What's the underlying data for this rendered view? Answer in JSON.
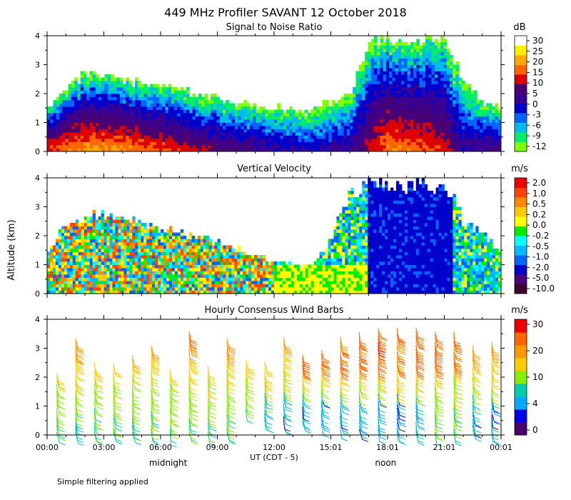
{
  "title": "449 MHz Profiler SAVANT 12 October 2018",
  "y_axis_label": "Altitude (km)",
  "x_axis": {
    "label": "UT  (CDT - 5)",
    "ticks": [
      "00:00",
      "03:00",
      "06:00",
      "09:00",
      "12:00",
      "15:01",
      "18:01",
      "21:01",
      "00:01"
    ],
    "tick_hours": [
      0,
      3,
      6,
      9,
      12,
      15,
      18,
      21,
      24
    ],
    "secondary_labels": [
      {
        "text": "midnight",
        "hour": 6.4
      },
      {
        "text": "noon",
        "hour": 17.9
      }
    ]
  },
  "footnote": "Simple filtering applied",
  "colors": {
    "background": "#ffffff",
    "snr_scale": [
      "#7fff00",
      "#00ee66",
      "#00bbee",
      "#0066ff",
      "#0000cc",
      "#3a0090",
      "#4b0070",
      "#dd0000",
      "#ff6600",
      "#ffaa00",
      "#ffee00",
      "#ffffff"
    ],
    "vel_scale": [
      "#3d0030",
      "#4a0080",
      "#0000cc",
      "#0066ff",
      "#00bbff",
      "#00ffff",
      "#00ee00",
      "#ffff00",
      "#ffcc00",
      "#ff8800",
      "#ff4400",
      "#ee0000"
    ],
    "wind_scale": [
      "#4b0070",
      "#0000ee",
      "#00aaff",
      "#00ccaa",
      "#88ee00",
      "#ffcc00",
      "#ff9900",
      "#ff6600",
      "#ee0000"
    ]
  },
  "chart_data": [
    {
      "type": "heatmap",
      "title": "Signal to Noise Ratio",
      "xlabel": "UT  (CDT - 5)",
      "ylabel": "Altitude (km)",
      "xlim": [
        0,
        24
      ],
      "ylim": [
        0,
        4
      ],
      "yticks": [
        "0",
        "1",
        "2",
        "3",
        "4"
      ],
      "colorbar_unit": "dB",
      "colorbar_labels": [
        "30",
        "25",
        "20",
        "15",
        "10",
        "5",
        "0",
        "-3",
        "-6",
        "-9",
        "-12"
      ],
      "colorbar_values": [
        -12,
        -9,
        -6,
        -3,
        0,
        5,
        10,
        15,
        20,
        25,
        30
      ],
      "echo_top_km": [
        [
          0.0,
          1.5
        ],
        [
          1.0,
          2.2
        ],
        [
          2.0,
          2.7
        ],
        [
          3.0,
          2.7
        ],
        [
          4.0,
          2.5
        ],
        [
          5.0,
          2.4
        ],
        [
          6.0,
          2.3
        ],
        [
          7.0,
          2.2
        ],
        [
          8.0,
          2.0
        ],
        [
          9.0,
          1.9
        ],
        [
          10.0,
          1.7
        ],
        [
          11.0,
          1.6
        ],
        [
          12.0,
          1.6
        ],
        [
          13.0,
          1.5
        ],
        [
          14.0,
          1.5
        ],
        [
          15.0,
          1.8
        ],
        [
          16.0,
          2.0
        ],
        [
          17.0,
          3.8
        ],
        [
          19.0,
          3.9
        ],
        [
          21.0,
          3.9
        ],
        [
          22.0,
          2.5
        ],
        [
          23.0,
          1.8
        ],
        [
          24.0,
          1.5
        ]
      ],
      "peak_snr_db": [
        [
          0.0,
          22
        ],
        [
          2.0,
          27
        ],
        [
          4.0,
          26
        ],
        [
          6.0,
          22
        ],
        [
          8.0,
          16
        ],
        [
          10.0,
          12
        ],
        [
          12.0,
          8
        ],
        [
          14.0,
          5
        ],
        [
          16.0,
          8
        ],
        [
          18.0,
          25
        ],
        [
          20.0,
          22
        ],
        [
          21.0,
          18
        ],
        [
          22.0,
          8
        ],
        [
          24.0,
          12
        ]
      ]
    },
    {
      "type": "heatmap",
      "title": "Vertical Velocity",
      "xlabel": "UT  (CDT - 5)",
      "ylabel": "Altitude (km)",
      "xlim": [
        0,
        24
      ],
      "ylim": [
        0,
        4
      ],
      "yticks": [
        "0",
        "1",
        "2",
        "3",
        "4"
      ],
      "colorbar_unit": "m/s",
      "colorbar_labels": [
        "2.0",
        "1.0",
        "0.5",
        "0.2",
        "0.0",
        "-0.2",
        "-0.5",
        "-1.0",
        "-2.0",
        "-5.0",
        "-10.0"
      ],
      "colorbar_values": [
        -10.0,
        -5.0,
        -2.0,
        -1.0,
        -0.5,
        -0.2,
        0.0,
        0.2,
        0.5,
        1.0,
        2.0
      ],
      "data_top_km": [
        [
          0.0,
          1.4
        ],
        [
          1.0,
          2.4
        ],
        [
          2.0,
          2.8
        ],
        [
          3.0,
          2.8
        ],
        [
          4.0,
          2.6
        ],
        [
          5.0,
          2.5
        ],
        [
          6.0,
          2.3
        ],
        [
          7.0,
          2.2
        ],
        [
          8.0,
          2.0
        ],
        [
          9.0,
          1.8
        ],
        [
          10.0,
          1.6
        ],
        [
          11.0,
          1.4
        ],
        [
          12.0,
          1.2
        ],
        [
          13.0,
          1.0
        ],
        [
          14.0,
          1.0
        ],
        [
          15.0,
          2.0
        ],
        [
          16.0,
          3.5
        ],
        [
          17.0,
          3.8
        ],
        [
          20.0,
          3.8
        ],
        [
          21.5,
          3.5
        ],
        [
          22.0,
          2.5
        ],
        [
          23.0,
          2.2
        ],
        [
          24.0,
          1.5
        ]
      ],
      "downdraft_region": {
        "start_hour": 17.0,
        "end_hour": 21.5,
        "velocity_ms": -2.0
      }
    },
    {
      "type": "wind_barbs",
      "title": "Hourly Consensus Wind Barbs",
      "xlabel": "UT  (CDT - 5)",
      "ylabel": "Altitude (km)",
      "xlim": [
        0,
        24
      ],
      "ylim": [
        0,
        4
      ],
      "yticks": [
        "0",
        "1",
        "2",
        "3",
        "4"
      ],
      "colorbar_unit": "m/s",
      "colorbar_labels": [
        "30",
        "20",
        "10",
        "4",
        "0"
      ],
      "colorbar_values": [
        0,
        4,
        10,
        20,
        30
      ],
      "hours": [
        0,
        1,
        2,
        3,
        4,
        5,
        6,
        7,
        8,
        9,
        10,
        11,
        12,
        13,
        14,
        15,
        16,
        17,
        18,
        19,
        20,
        21,
        22,
        23
      ],
      "profile_top_km": [
        2.2,
        3.4,
        2.6,
        2.6,
        2.8,
        3.2,
        2.3,
        3.7,
        2.4,
        3.4,
        2.6,
        2.6,
        3.5,
        2.8,
        3.0,
        3.5,
        3.6,
        3.7,
        3.8,
        3.8,
        3.7,
        3.7,
        3.2,
        3.3
      ],
      "profile_bottom_km": [
        0.1,
        0.1,
        0.1,
        0.1,
        0.1,
        0.1,
        0.1,
        0.1,
        0.1,
        0.1,
        0.9,
        0.5,
        0.4,
        0.5,
        0.4,
        0.3,
        0.2,
        0.2,
        0.1,
        0.1,
        0.1,
        0.1,
        0.2,
        0.1
      ],
      "barb_spacing_km": 0.12,
      "speed_profile_ms": [
        [
          0.0,
          9
        ],
        [
          0.5,
          10
        ],
        [
          1.0,
          11
        ],
        [
          1.5,
          13
        ],
        [
          2.0,
          14
        ],
        [
          2.5,
          16
        ],
        [
          3.0,
          19
        ],
        [
          3.5,
          22
        ],
        [
          4.0,
          24
        ]
      ],
      "shallow_low_speed_hours": [
        11,
        12,
        13,
        14,
        15,
        16,
        17,
        18,
        19,
        22,
        23
      ],
      "upper_jet": {
        "start_hour": 12.5,
        "end_hour": 21.5,
        "min_alt_km": 2.3,
        "speed_ms": 21
      }
    }
  ]
}
